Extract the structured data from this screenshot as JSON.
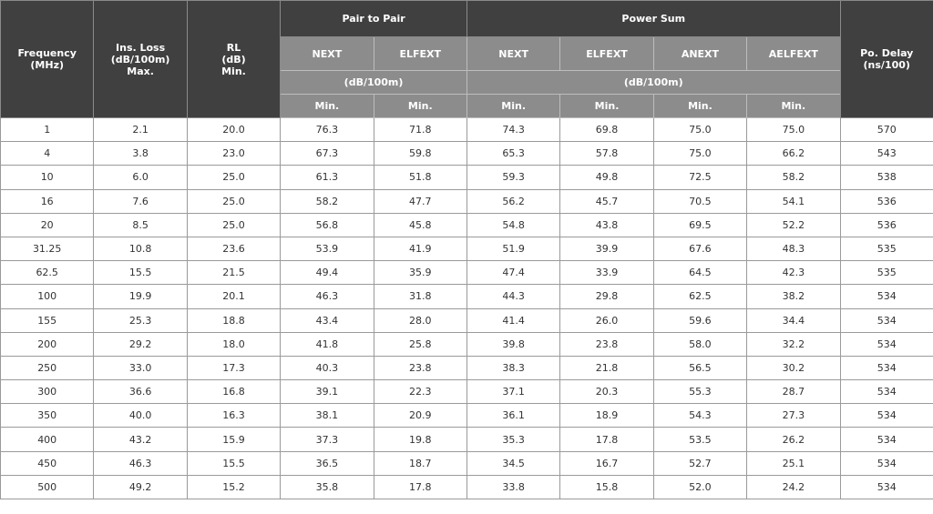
{
  "header": {
    "frequency": "Frequency\n(MHz)",
    "ins_loss": "Ins. Loss\n(dB/100m)\nMax.",
    "rl": "RL\n(dB)\nMin.",
    "pair_to_pair": "Pair to Pair",
    "power_sum": "Power Sum",
    "po_delay": "Po. Delay\n(ns/100)",
    "p2p_next": "NEXT",
    "p2p_elfext": "ELFEXT",
    "ps_next": "NEXT",
    "ps_elfext": "ELFEXT",
    "ps_anext": "ANEXT",
    "ps_aelfext": "AELFEXT",
    "p2p_unit": "(dB/100m)",
    "ps_unit": "(dB/100m)",
    "min": "Min."
  },
  "rows": [
    [
      "1",
      "2.1",
      "20.0",
      "76.3",
      "71.8",
      "74.3",
      "69.8",
      "75.0",
      "75.0",
      "570"
    ],
    [
      "4",
      "3.8",
      "23.0",
      "67.3",
      "59.8",
      "65.3",
      "57.8",
      "75.0",
      "66.2",
      "543"
    ],
    [
      "10",
      "6.0",
      "25.0",
      "61.3",
      "51.8",
      "59.3",
      "49.8",
      "72.5",
      "58.2",
      "538"
    ],
    [
      "16",
      "7.6",
      "25.0",
      "58.2",
      "47.7",
      "56.2",
      "45.7",
      "70.5",
      "54.1",
      "536"
    ],
    [
      "20",
      "8.5",
      "25.0",
      "56.8",
      "45.8",
      "54.8",
      "43.8",
      "69.5",
      "52.2",
      "536"
    ],
    [
      "31.25",
      "10.8",
      "23.6",
      "53.9",
      "41.9",
      "51.9",
      "39.9",
      "67.6",
      "48.3",
      "535"
    ],
    [
      "62.5",
      "15.5",
      "21.5",
      "49.4",
      "35.9",
      "47.4",
      "33.9",
      "64.5",
      "42.3",
      "535"
    ],
    [
      "100",
      "19.9",
      "20.1",
      "46.3",
      "31.8",
      "44.3",
      "29.8",
      "62.5",
      "38.2",
      "534"
    ],
    [
      "155",
      "25.3",
      "18.8",
      "43.4",
      "28.0",
      "41.4",
      "26.0",
      "59.6",
      "34.4",
      "534"
    ],
    [
      "200",
      "29.2",
      "18.0",
      "41.8",
      "25.8",
      "39.8",
      "23.8",
      "58.0",
      "32.2",
      "534"
    ],
    [
      "250",
      "33.0",
      "17.3",
      "40.3",
      "23.8",
      "38.3",
      "21.8",
      "56.5",
      "30.2",
      "534"
    ],
    [
      "300",
      "36.6",
      "16.8",
      "39.1",
      "22.3",
      "37.1",
      "20.3",
      "55.3",
      "28.7",
      "534"
    ],
    [
      "350",
      "40.0",
      "16.3",
      "38.1",
      "20.9",
      "36.1",
      "18.9",
      "54.3",
      "27.3",
      "534"
    ],
    [
      "400",
      "43.2",
      "15.9",
      "37.3",
      "19.8",
      "35.3",
      "17.8",
      "53.5",
      "26.2",
      "534"
    ],
    [
      "450",
      "46.3",
      "15.5",
      "36.5",
      "18.7",
      "34.5",
      "16.7",
      "52.7",
      "25.1",
      "534"
    ],
    [
      "500",
      "49.2",
      "15.2",
      "35.8",
      "17.8",
      "33.8",
      "15.8",
      "52.0",
      "24.2",
      "534"
    ]
  ],
  "colors": {
    "header_dark": "#404040",
    "header_grey": "#8c8c8c",
    "border": "#9a9a9a"
  }
}
